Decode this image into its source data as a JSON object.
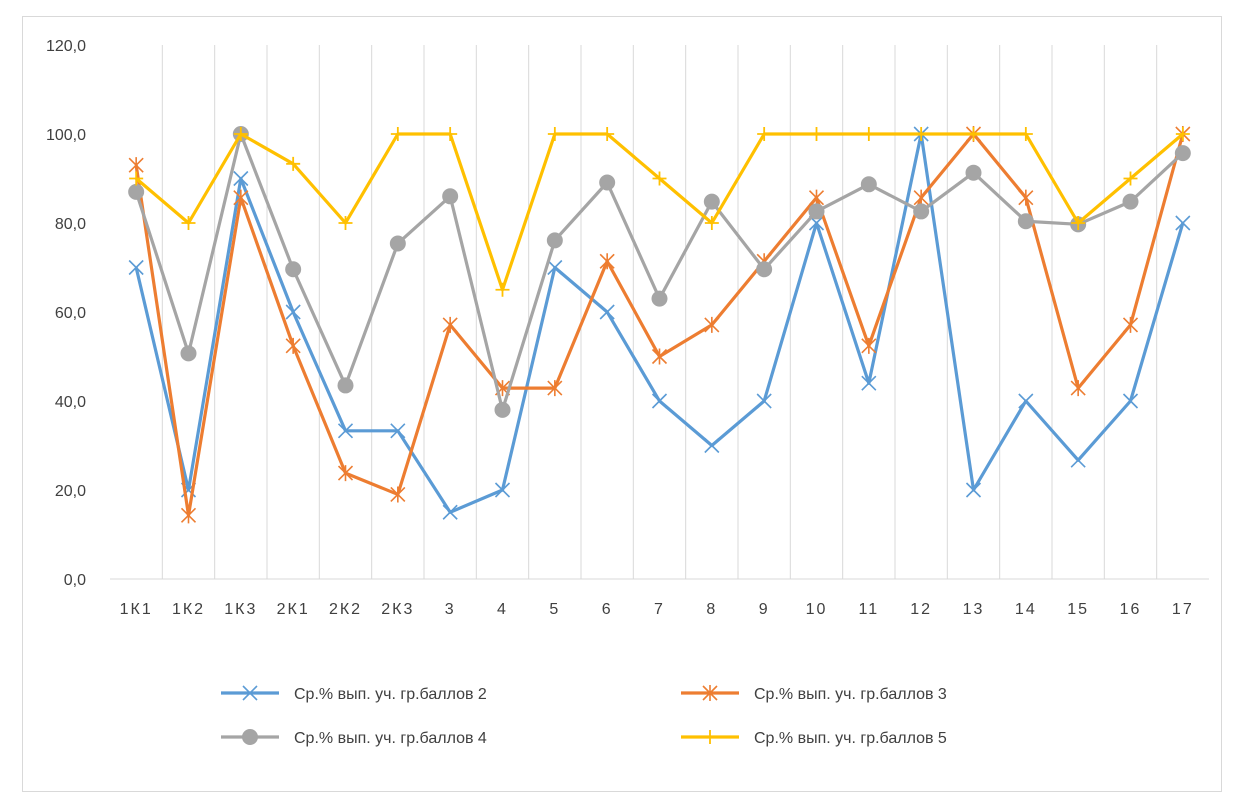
{
  "chart_data": {
    "type": "line",
    "categories": [
      "1К1",
      "1К2",
      "1К3",
      "2К1",
      "2К2",
      "2К3",
      "3",
      "4",
      "5",
      "6",
      "7",
      "8",
      "9",
      "10",
      "11",
      "12",
      "13",
      "14",
      "15",
      "16",
      "17"
    ],
    "ylim": [
      0,
      120
    ],
    "yticks": [
      "0,0",
      "20,0",
      "40,0",
      "60,0",
      "80,0",
      "100,0",
      "120,0"
    ],
    "ytick_values": [
      0,
      20,
      40,
      60,
      80,
      100,
      120
    ],
    "grid": "vertical",
    "legend_position": "bottom",
    "series": [
      {
        "name": "Ср.% вып. уч. гр.баллов 2",
        "color": "#5b9bd5",
        "marker": "x",
        "values": [
          70,
          20,
          90,
          60,
          33.3,
          33.3,
          15,
          20,
          70,
          60,
          40,
          30,
          40,
          80,
          44,
          100,
          20,
          40,
          26.7,
          40,
          80
        ]
      },
      {
        "name": "Ср.% вып. уч. гр.баллов 3",
        "color": "#ed7d31",
        "marker": "star",
        "values": [
          93,
          14.3,
          85.7,
          52.4,
          23.8,
          19,
          57.1,
          42.9,
          42.9,
          71.4,
          50,
          57.1,
          71.4,
          85.7,
          52.4,
          85.7,
          100,
          85.7,
          42.9,
          57.1,
          100
        ]
      },
      {
        "name": "Ср.% вып. уч. гр.баллов 4",
        "color": "#a5a5a5",
        "marker": "circle",
        "values": [
          87,
          50.7,
          100,
          69.6,
          43.5,
          75.4,
          86,
          38,
          76.1,
          89.1,
          63,
          84.8,
          69.6,
          82.6,
          88.7,
          82.6,
          91.3,
          80.4,
          79.7,
          84.8,
          95.7
        ]
      },
      {
        "name": "Ср.% вып. уч. гр.баллов 5",
        "color": "#ffc000",
        "marker": "plus",
        "values": [
          90,
          80,
          100,
          93.3,
          80,
          100,
          100,
          65,
          100,
          100,
          90,
          80,
          100,
          100,
          100,
          100,
          100,
          100,
          80,
          90,
          100
        ]
      }
    ]
  }
}
